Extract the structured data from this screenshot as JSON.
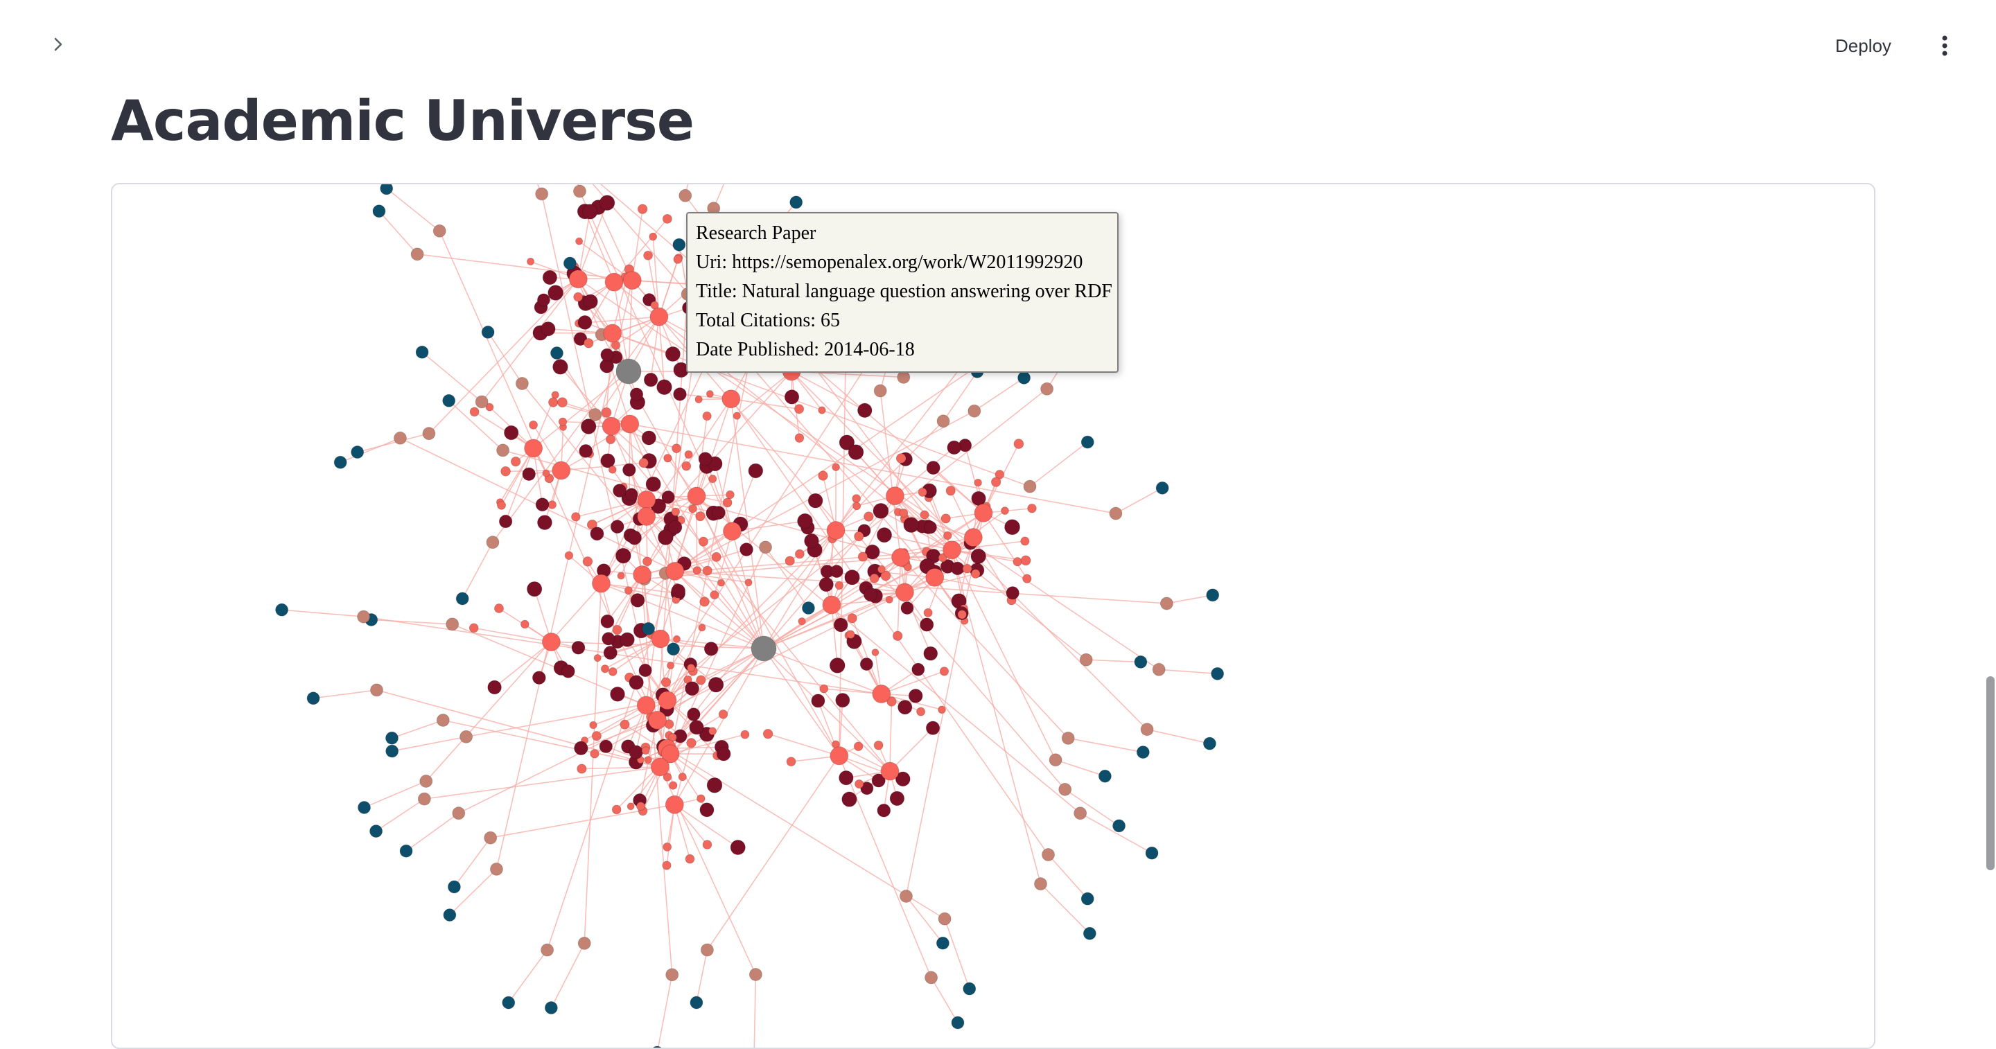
{
  "header": {
    "deploy_label": "Deploy"
  },
  "page": {
    "title": "Academic Universe"
  },
  "tooltip": {
    "type_label": "Research Paper",
    "uri_line": "Uri: https://semopenalex.org/work/W2011992920",
    "title_line": "Title: Natural language question answering over RDF",
    "citations_line": "Total Citations: 65",
    "date_line": "Date Published: 2014-06-18"
  },
  "graph": {
    "colors": {
      "hub": "#808080",
      "paper_large": "#f9635a",
      "paper_small": "#f2675c",
      "author": "#7a1127",
      "concept": "#c48372",
      "institution": "#0d4f6b",
      "edge": "#f7a9a3"
    }
  }
}
